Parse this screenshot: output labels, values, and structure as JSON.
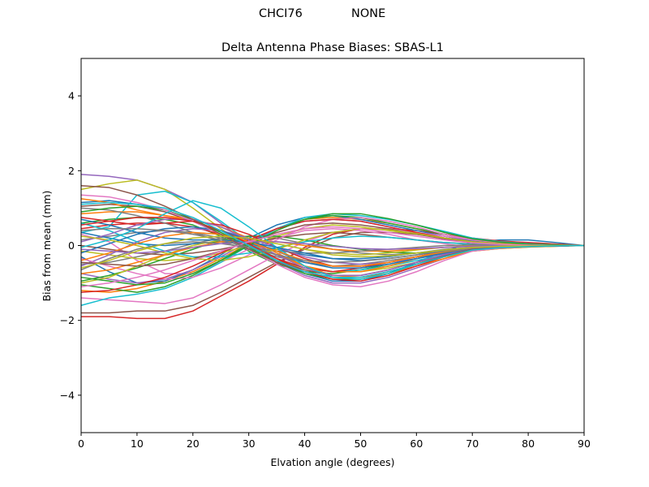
{
  "header": {
    "station": "CHCI76",
    "radome": "NONE"
  },
  "chart_data": {
    "type": "line",
    "title": "Delta Antenna Phase Biases: SBAS-L1",
    "xlabel": "Elvation angle (degrees)",
    "ylabel": "Bias from mean (mm)",
    "xlim": [
      0,
      90
    ],
    "ylim": [
      -5,
      5
    ],
    "xticks": [
      0,
      10,
      20,
      30,
      40,
      50,
      60,
      70,
      80,
      90
    ],
    "yticks": [
      -4,
      -2,
      0,
      2,
      4
    ],
    "grid": false,
    "x": [
      0,
      5,
      10,
      15,
      20,
      25,
      30,
      35,
      40,
      45,
      50,
      55,
      60,
      65,
      70,
      75,
      80,
      85,
      90
    ],
    "series": [
      {
        "color": "#1f77b4",
        "values": [
          1.15,
          1.2,
          1.1,
          0.95,
          0.7,
          0.35,
          0.0,
          -0.4,
          -0.75,
          -0.95,
          -0.95,
          -0.75,
          -0.45,
          -0.15,
          0.1,
          0.15,
          0.15,
          0.08,
          0.0
        ]
      },
      {
        "color": "#ff7f0e",
        "values": [
          -1.2,
          -1.25,
          -1.15,
          -0.95,
          -0.7,
          -0.35,
          0.05,
          0.45,
          0.7,
          0.75,
          0.7,
          0.6,
          0.45,
          0.3,
          0.15,
          0.08,
          0.05,
          0.02,
          0.0
        ]
      },
      {
        "color": "#2ca02c",
        "values": [
          0.6,
          0.7,
          0.75,
          0.7,
          0.55,
          0.25,
          -0.15,
          -0.5,
          -0.7,
          -0.75,
          -0.65,
          -0.5,
          -0.35,
          -0.2,
          -0.1,
          -0.05,
          -0.03,
          -0.01,
          0.0
        ]
      },
      {
        "color": "#d62728",
        "values": [
          -1.9,
          -1.9,
          -1.95,
          -1.95,
          -1.75,
          -1.35,
          -0.95,
          -0.5,
          -0.05,
          0.3,
          0.45,
          0.45,
          0.4,
          0.3,
          0.2,
          0.12,
          0.08,
          0.04,
          0.0
        ]
      },
      {
        "color": "#9467bd",
        "values": [
          1.9,
          1.85,
          1.75,
          1.5,
          1.15,
          0.6,
          0.05,
          -0.45,
          -0.8,
          -1.0,
          -1.0,
          -0.85,
          -0.6,
          -0.35,
          -0.12,
          -0.05,
          -0.02,
          -0.01,
          0.0
        ]
      },
      {
        "color": "#8c564b",
        "values": [
          -1.8,
          -1.8,
          -1.75,
          -1.75,
          -1.6,
          -1.25,
          -0.85,
          -0.45,
          -0.1,
          0.2,
          0.35,
          0.35,
          0.3,
          0.2,
          0.12,
          0.08,
          0.05,
          0.02,
          0.0
        ]
      },
      {
        "color": "#e377c2",
        "values": [
          0.3,
          0.1,
          -0.4,
          -0.75,
          -0.75,
          -0.45,
          -0.1,
          0.2,
          0.4,
          0.45,
          0.4,
          0.3,
          0.15,
          0.05,
          -0.05,
          -0.05,
          -0.03,
          -0.02,
          0.0
        ]
      },
      {
        "color": "#7f7f7f",
        "values": [
          -0.5,
          -0.45,
          -0.3,
          -0.15,
          0.05,
          0.2,
          0.25,
          0.2,
          0.05,
          -0.1,
          -0.2,
          -0.25,
          -0.2,
          -0.1,
          -0.05,
          0.0,
          0.0,
          0.0,
          0.0
        ]
      },
      {
        "color": "#bcbd22",
        "values": [
          1.5,
          1.65,
          1.75,
          1.5,
          1.0,
          0.45,
          -0.05,
          -0.4,
          -0.6,
          -0.7,
          -0.7,
          -0.6,
          -0.45,
          -0.3,
          -0.15,
          -0.08,
          -0.04,
          -0.02,
          0.0
        ]
      },
      {
        "color": "#17becf",
        "values": [
          0.35,
          0.5,
          1.35,
          1.45,
          1.15,
          0.65,
          0.1,
          -0.35,
          -0.6,
          -0.7,
          -0.65,
          -0.55,
          -0.4,
          -0.25,
          -0.12,
          -0.06,
          -0.03,
          -0.01,
          0.0
        ]
      },
      {
        "color": "#1f77b4",
        "values": [
          -0.3,
          -0.7,
          -1.0,
          -0.95,
          -0.65,
          -0.25,
          0.2,
          0.55,
          0.75,
          0.8,
          0.7,
          0.55,
          0.4,
          0.25,
          0.12,
          0.06,
          0.03,
          0.01,
          0.0
        ]
      },
      {
        "color": "#ff7f0e",
        "values": [
          0.85,
          0.9,
          0.9,
          0.8,
          0.65,
          0.4,
          0.1,
          -0.25,
          -0.55,
          -0.7,
          -0.7,
          -0.55,
          -0.35,
          -0.15,
          -0.05,
          -0.02,
          -0.01,
          0.0,
          0.0
        ]
      },
      {
        "color": "#2ca02c",
        "values": [
          -1.05,
          -1.15,
          -1.25,
          -1.1,
          -0.8,
          -0.4,
          0.05,
          0.45,
          0.7,
          0.8,
          0.75,
          0.6,
          0.45,
          0.3,
          0.15,
          0.08,
          0.04,
          0.02,
          0.0
        ]
      },
      {
        "color": "#d62728",
        "values": [
          0.45,
          0.55,
          0.6,
          0.6,
          0.5,
          0.3,
          0.0,
          -0.35,
          -0.6,
          -0.7,
          -0.6,
          -0.45,
          -0.3,
          -0.18,
          -0.08,
          -0.04,
          -0.02,
          -0.01,
          0.0
        ]
      },
      {
        "color": "#9467bd",
        "values": [
          -0.75,
          -0.9,
          -1.0,
          -0.9,
          -0.65,
          -0.3,
          0.1,
          0.45,
          0.65,
          0.7,
          0.65,
          0.5,
          0.35,
          0.2,
          0.1,
          0.05,
          0.02,
          0.01,
          0.0
        ]
      },
      {
        "color": "#8c564b",
        "values": [
          1.05,
          1.1,
          1.05,
          0.9,
          0.65,
          0.3,
          -0.05,
          -0.4,
          -0.65,
          -0.8,
          -0.8,
          -0.65,
          -0.45,
          -0.25,
          -0.1,
          -0.05,
          -0.02,
          -0.01,
          0.0
        ]
      },
      {
        "color": "#e377c2",
        "values": [
          -1.4,
          -1.45,
          -1.5,
          -1.55,
          -1.4,
          -1.05,
          -0.65,
          -0.25,
          0.1,
          0.35,
          0.45,
          0.45,
          0.35,
          0.25,
          0.15,
          0.08,
          0.04,
          0.02,
          0.0
        ]
      },
      {
        "color": "#7f7f7f",
        "values": [
          0.15,
          0.25,
          0.35,
          0.4,
          0.35,
          0.2,
          0.0,
          -0.25,
          -0.45,
          -0.55,
          -0.5,
          -0.4,
          -0.3,
          -0.2,
          -0.1,
          -0.05,
          -0.02,
          -0.01,
          0.0
        ]
      },
      {
        "color": "#bcbd22",
        "values": [
          -0.15,
          -0.25,
          -0.35,
          -0.4,
          -0.35,
          -0.2,
          0.0,
          0.25,
          0.45,
          0.55,
          0.5,
          0.4,
          0.3,
          0.2,
          0.1,
          0.05,
          0.02,
          0.01,
          0.0
        ]
      },
      {
        "color": "#17becf",
        "values": [
          -1.6,
          -1.4,
          -1.3,
          -1.15,
          -0.85,
          -0.45,
          0.0,
          0.45,
          0.75,
          0.85,
          0.8,
          0.7,
          0.55,
          0.38,
          0.2,
          0.1,
          0.05,
          0.02,
          0.0
        ]
      },
      {
        "color": "#1f77b4",
        "values": [
          0.35,
          0.2,
          0.05,
          0.0,
          0.05,
          0.1,
          0.05,
          -0.1,
          -0.25,
          -0.35,
          -0.35,
          -0.3,
          -0.2,
          -0.12,
          -0.06,
          -0.03,
          -0.01,
          0.0,
          0.0
        ]
      },
      {
        "color": "#ff7f0e",
        "values": [
          1.25,
          1.15,
          0.95,
          0.8,
          0.7,
          0.5,
          0.2,
          -0.2,
          -0.55,
          -0.8,
          -0.85,
          -0.75,
          -0.55,
          -0.35,
          -0.15,
          -0.08,
          -0.04,
          -0.02,
          0.0
        ]
      },
      {
        "color": "#2ca02c",
        "values": [
          -0.95,
          -0.8,
          -0.6,
          -0.35,
          -0.1,
          0.15,
          0.25,
          0.25,
          0.15,
          0.0,
          -0.1,
          -0.18,
          -0.2,
          -0.18,
          -0.12,
          -0.06,
          -0.03,
          -0.01,
          0.0
        ]
      },
      {
        "color": "#d62728",
        "values": [
          0.75,
          0.65,
          0.55,
          0.6,
          0.65,
          0.55,
          0.3,
          -0.05,
          -0.35,
          -0.55,
          -0.55,
          -0.45,
          -0.3,
          -0.15,
          -0.05,
          -0.02,
          -0.01,
          0.0,
          0.0
        ]
      },
      {
        "color": "#9467bd",
        "values": [
          -0.55,
          -0.25,
          0.1,
          0.35,
          0.45,
          0.4,
          0.2,
          -0.05,
          -0.3,
          -0.45,
          -0.5,
          -0.45,
          -0.35,
          -0.22,
          -0.1,
          -0.05,
          -0.02,
          -0.01,
          0.0
        ]
      },
      {
        "color": "#8c564b",
        "values": [
          0.0,
          -0.1,
          -0.2,
          -0.25,
          -0.2,
          -0.1,
          0.05,
          0.2,
          0.3,
          0.35,
          0.3,
          0.22,
          0.15,
          0.08,
          0.04,
          0.02,
          0.01,
          0.0,
          0.0
        ]
      },
      {
        "color": "#e377c2",
        "values": [
          -0.35,
          -0.55,
          -0.75,
          -0.9,
          -0.85,
          -0.6,
          -0.25,
          0.15,
          0.5,
          0.7,
          0.75,
          0.65,
          0.5,
          0.3,
          0.15,
          0.08,
          0.04,
          0.02,
          0.0
        ]
      },
      {
        "color": "#7f7f7f",
        "values": [
          1.0,
          0.95,
          0.8,
          0.6,
          0.35,
          0.1,
          -0.1,
          -0.3,
          -0.45,
          -0.55,
          -0.55,
          -0.45,
          -0.3,
          -0.18,
          -0.08,
          -0.04,
          -0.02,
          -0.01,
          0.0
        ]
      },
      {
        "color": "#bcbd22",
        "values": [
          -1.0,
          -0.85,
          -0.55,
          -0.25,
          0.0,
          0.15,
          0.15,
          0.05,
          -0.1,
          -0.2,
          -0.25,
          -0.2,
          -0.12,
          -0.05,
          0.0,
          0.02,
          0.01,
          0.0,
          0.0
        ]
      },
      {
        "color": "#17becf",
        "values": [
          0.6,
          0.4,
          0.1,
          -0.15,
          -0.3,
          -0.3,
          -0.2,
          -0.05,
          0.1,
          0.2,
          0.25,
          0.22,
          0.15,
          0.08,
          0.03,
          0.01,
          0.0,
          0.0,
          0.0
        ]
      },
      {
        "color": "#1f77b4",
        "values": [
          -0.2,
          0.05,
          0.3,
          0.45,
          0.5,
          0.4,
          0.15,
          -0.15,
          -0.45,
          -0.6,
          -0.6,
          -0.5,
          -0.35,
          -0.2,
          -0.08,
          -0.04,
          -0.02,
          -0.01,
          0.0
        ]
      },
      {
        "color": "#ff7f0e",
        "values": [
          -0.75,
          -0.65,
          -0.45,
          -0.25,
          -0.05,
          0.1,
          0.15,
          0.1,
          0.0,
          -0.1,
          -0.15,
          -0.15,
          -0.1,
          -0.05,
          -0.02,
          0.0,
          0.0,
          0.0,
          0.0
        ]
      },
      {
        "color": "#2ca02c",
        "values": [
          0.9,
          1.0,
          1.05,
          0.95,
          0.7,
          0.35,
          -0.05,
          -0.45,
          -0.75,
          -0.9,
          -0.9,
          -0.75,
          -0.5,
          -0.28,
          -0.1,
          -0.05,
          -0.02,
          -0.01,
          0.0
        ]
      },
      {
        "color": "#d62728",
        "values": [
          -1.25,
          -1.2,
          -1.05,
          -0.85,
          -0.55,
          -0.2,
          0.15,
          0.45,
          0.65,
          0.7,
          0.65,
          0.5,
          0.35,
          0.2,
          0.1,
          0.05,
          0.02,
          0.01,
          0.0
        ]
      },
      {
        "color": "#9467bd",
        "values": [
          0.1,
          0.3,
          0.55,
          0.7,
          0.7,
          0.5,
          0.15,
          -0.25,
          -0.6,
          -0.8,
          -0.8,
          -0.65,
          -0.45,
          -0.25,
          -0.1,
          -0.05,
          -0.02,
          -0.01,
          0.0
        ]
      },
      {
        "color": "#8c564b",
        "values": [
          -0.45,
          -0.5,
          -0.55,
          -0.5,
          -0.35,
          -0.15,
          0.1,
          0.35,
          0.55,
          0.6,
          0.55,
          0.45,
          0.3,
          0.18,
          0.08,
          0.04,
          0.02,
          0.01,
          0.0
        ]
      },
      {
        "color": "#e377c2",
        "values": [
          1.35,
          1.3,
          1.15,
          0.95,
          0.65,
          0.3,
          -0.1,
          -0.5,
          -0.85,
          -1.05,
          -1.1,
          -0.95,
          -0.7,
          -0.4,
          -0.15,
          -0.07,
          -0.03,
          -0.01,
          0.0
        ]
      },
      {
        "color": "#7f7f7f",
        "values": [
          -0.65,
          -0.35,
          -0.1,
          0.05,
          0.1,
          0.05,
          -0.05,
          -0.15,
          -0.2,
          -0.2,
          -0.15,
          -0.1,
          -0.05,
          0.0,
          0.02,
          0.02,
          0.01,
          0.0,
          0.0
        ]
      },
      {
        "color": "#bcbd22",
        "values": [
          0.25,
          0.15,
          0.0,
          -0.2,
          -0.35,
          -0.4,
          -0.3,
          -0.1,
          0.15,
          0.35,
          0.45,
          0.42,
          0.32,
          0.2,
          0.1,
          0.05,
          0.02,
          0.01,
          0.0
        ]
      },
      {
        "color": "#17becf",
        "values": [
          -0.05,
          0.15,
          0.45,
          0.85,
          1.2,
          1.0,
          0.5,
          -0.05,
          -0.55,
          -0.85,
          -0.9,
          -0.75,
          -0.5,
          -0.28,
          -0.1,
          -0.05,
          -0.02,
          -0.01,
          0.0
        ]
      },
      {
        "color": "#1f77b4",
        "values": [
          0.7,
          0.55,
          0.35,
          0.2,
          0.15,
          0.15,
          0.1,
          -0.05,
          -0.2,
          -0.35,
          -0.4,
          -0.35,
          -0.25,
          -0.15,
          -0.07,
          -0.03,
          -0.01,
          0.0,
          0.0
        ]
      },
      {
        "color": "#ff7f0e",
        "values": [
          -0.4,
          -0.2,
          0.05,
          0.25,
          0.35,
          0.3,
          0.1,
          -0.15,
          -0.4,
          -0.55,
          -0.55,
          -0.45,
          -0.3,
          -0.17,
          -0.07,
          -0.03,
          -0.01,
          0.0,
          0.0
        ]
      },
      {
        "color": "#2ca02c",
        "values": [
          -0.85,
          -0.95,
          -1.05,
          -1.0,
          -0.75,
          -0.4,
          0.0,
          0.4,
          0.7,
          0.85,
          0.85,
          0.72,
          0.55,
          0.35,
          0.18,
          0.09,
          0.04,
          0.02,
          0.0
        ]
      },
      {
        "color": "#d62728",
        "values": [
          0.55,
          0.65,
          0.75,
          0.75,
          0.65,
          0.4,
          0.05,
          -0.35,
          -0.7,
          -0.9,
          -0.95,
          -0.8,
          -0.55,
          -0.3,
          -0.1,
          -0.05,
          -0.02,
          -0.01,
          0.0
        ]
      },
      {
        "color": "#9467bd",
        "values": [
          -0.1,
          -0.15,
          -0.2,
          -0.15,
          -0.05,
          0.05,
          0.1,
          0.1,
          0.05,
          -0.02,
          -0.08,
          -0.1,
          -0.08,
          -0.05,
          -0.02,
          0.0,
          0.0,
          0.0,
          0.0
        ]
      },
      {
        "color": "#8c564b",
        "values": [
          1.6,
          1.55,
          1.35,
          1.05,
          0.7,
          0.3,
          -0.1,
          -0.45,
          -0.7,
          -0.85,
          -0.85,
          -0.7,
          -0.5,
          -0.28,
          -0.1,
          -0.05,
          -0.02,
          -0.01,
          0.0
        ]
      },
      {
        "color": "#e377c2",
        "values": [
          -1.1,
          -1.0,
          -0.85,
          -0.65,
          -0.4,
          -0.15,
          0.1,
          0.3,
          0.45,
          0.5,
          0.45,
          0.35,
          0.25,
          0.15,
          0.07,
          0.03,
          0.01,
          0.0,
          0.0
        ]
      },
      {
        "color": "#7f7f7f",
        "values": [
          0.4,
          0.45,
          0.45,
          0.4,
          0.3,
          0.15,
          -0.05,
          -0.25,
          -0.4,
          -0.45,
          -0.42,
          -0.35,
          -0.25,
          -0.15,
          -0.07,
          -0.03,
          -0.01,
          0.0,
          0.0
        ]
      },
      {
        "color": "#bcbd22",
        "values": [
          -0.6,
          -0.4,
          -0.15,
          0.05,
          0.2,
          0.25,
          0.2,
          0.05,
          -0.1,
          -0.25,
          -0.3,
          -0.28,
          -0.2,
          -0.12,
          -0.05,
          -0.02,
          -0.01,
          0.0,
          0.0
        ]
      },
      {
        "color": "#17becf",
        "values": [
          1.1,
          1.15,
          1.1,
          1.0,
          0.75,
          0.4,
          0.0,
          -0.4,
          -0.7,
          -0.85,
          -0.85,
          -0.7,
          -0.5,
          -0.3,
          -0.12,
          -0.06,
          -0.03,
          -0.01,
          0.0
        ]
      }
    ]
  }
}
